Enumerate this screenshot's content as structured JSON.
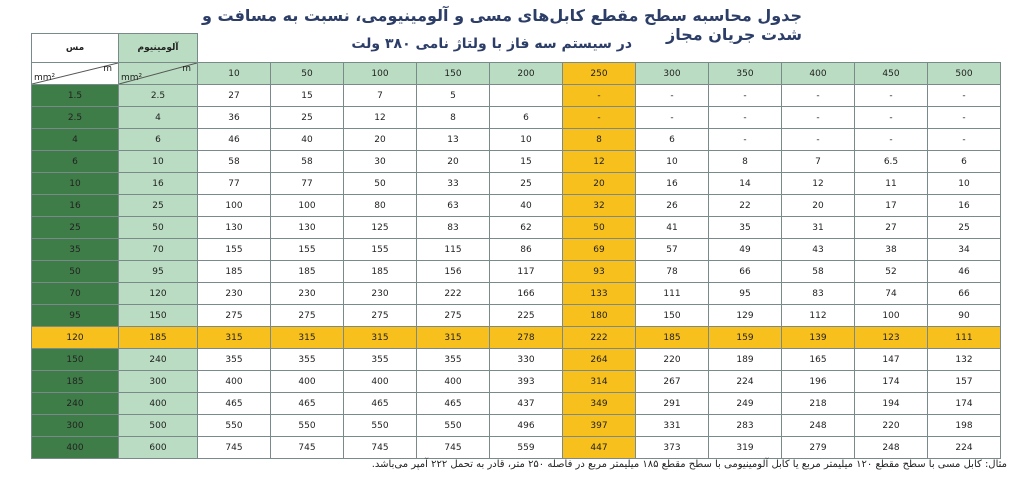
{
  "title": "جدول محاسبه سطح مقطع کابل‌های مسی و آلومینیومی، نسبت به مسافت و شدت جریان مجاز",
  "subtitle": "در سیستم سه فاز با ولتاژ نامی ۳۸۰ ولت",
  "headers": {
    "copper": "مس",
    "aluminum": "آلومینیوم",
    "unit_length": "m",
    "unit_area": "mm²"
  },
  "distances": [
    "10",
    "50",
    "100",
    "150",
    "200",
    "250",
    "300",
    "350",
    "400",
    "450",
    "500"
  ],
  "rows": [
    {
      "cu": "1.5",
      "al": "2.5",
      "v": [
        "27",
        "15",
        "7",
        "5",
        "",
        "-",
        "-",
        "-",
        "-",
        "-",
        "-"
      ]
    },
    {
      "cu": "2.5",
      "al": "4",
      "v": [
        "36",
        "25",
        "12",
        "8",
        "6",
        "-",
        "-",
        "-",
        "-",
        "-",
        "-"
      ]
    },
    {
      "cu": "4",
      "al": "6",
      "v": [
        "46",
        "40",
        "20",
        "13",
        "10",
        "8",
        "6",
        "-",
        "-",
        "-",
        "-"
      ]
    },
    {
      "cu": "6",
      "al": "10",
      "v": [
        "58",
        "58",
        "30",
        "20",
        "15",
        "12",
        "10",
        "8",
        "7",
        "6.5",
        "6"
      ]
    },
    {
      "cu": "10",
      "al": "16",
      "v": [
        "77",
        "77",
        "50",
        "33",
        "25",
        "20",
        "16",
        "14",
        "12",
        "11",
        "10"
      ]
    },
    {
      "cu": "16",
      "al": "25",
      "v": [
        "100",
        "100",
        "80",
        "63",
        "40",
        "32",
        "26",
        "22",
        "20",
        "17",
        "16"
      ]
    },
    {
      "cu": "25",
      "al": "50",
      "v": [
        "130",
        "130",
        "125",
        "83",
        "62",
        "50",
        "41",
        "35",
        "31",
        "27",
        "25"
      ]
    },
    {
      "cu": "35",
      "al": "70",
      "v": [
        "155",
        "155",
        "155",
        "115",
        "86",
        "69",
        "57",
        "49",
        "43",
        "38",
        "34"
      ]
    },
    {
      "cu": "50",
      "al": "95",
      "v": [
        "185",
        "185",
        "185",
        "156",
        "117",
        "93",
        "78",
        "66",
        "58",
        "52",
        "46"
      ]
    },
    {
      "cu": "70",
      "al": "120",
      "v": [
        "230",
        "230",
        "230",
        "222",
        "166",
        "133",
        "111",
        "95",
        "83",
        "74",
        "66"
      ]
    },
    {
      "cu": "95",
      "al": "150",
      "v": [
        "275",
        "275",
        "275",
        "275",
        "225",
        "180",
        "150",
        "129",
        "112",
        "100",
        "90"
      ]
    },
    {
      "cu": "120",
      "al": "185",
      "v": [
        "315",
        "315",
        "315",
        "315",
        "278",
        "222",
        "185",
        "159",
        "139",
        "123",
        "111"
      ]
    },
    {
      "cu": "150",
      "al": "240",
      "v": [
        "355",
        "355",
        "355",
        "355",
        "330",
        "264",
        "220",
        "189",
        "165",
        "147",
        "132"
      ]
    },
    {
      "cu": "185",
      "al": "300",
      "v": [
        "400",
        "400",
        "400",
        "400",
        "393",
        "314",
        "267",
        "224",
        "196",
        "174",
        "157"
      ]
    },
    {
      "cu": "240",
      "al": "400",
      "v": [
        "465",
        "465",
        "465",
        "465",
        "437",
        "349",
        "291",
        "249",
        "218",
        "194",
        "174"
      ]
    },
    {
      "cu": "300",
      "al": "500",
      "v": [
        "550",
        "550",
        "550",
        "550",
        "496",
        "397",
        "331",
        "283",
        "248",
        "220",
        "198"
      ]
    },
    {
      "cu": "400",
      "al": "600",
      "v": [
        "745",
        "745",
        "745",
        "745",
        "559",
        "447",
        "373",
        "319",
        "279",
        "248",
        "224"
      ]
    }
  ],
  "highlight_row_index": 11,
  "highlight_col_index": 5,
  "note": "مثال: کابل مسی با سطح مقطع ۱۲۰ میلیمتر مربع یا کابل آلومینیومی با سطح مقطع ۱۸۵ میلیمتر مربع در فاصله ۲۵۰ متر، قادر به تحمل ۲۲۲ آمپر می‌باشد.",
  "colors": {
    "copper": "#3f7d48",
    "aluminum": "#b9dcc2",
    "highlight": "#f8c01c",
    "title": "#2c3e68"
  }
}
